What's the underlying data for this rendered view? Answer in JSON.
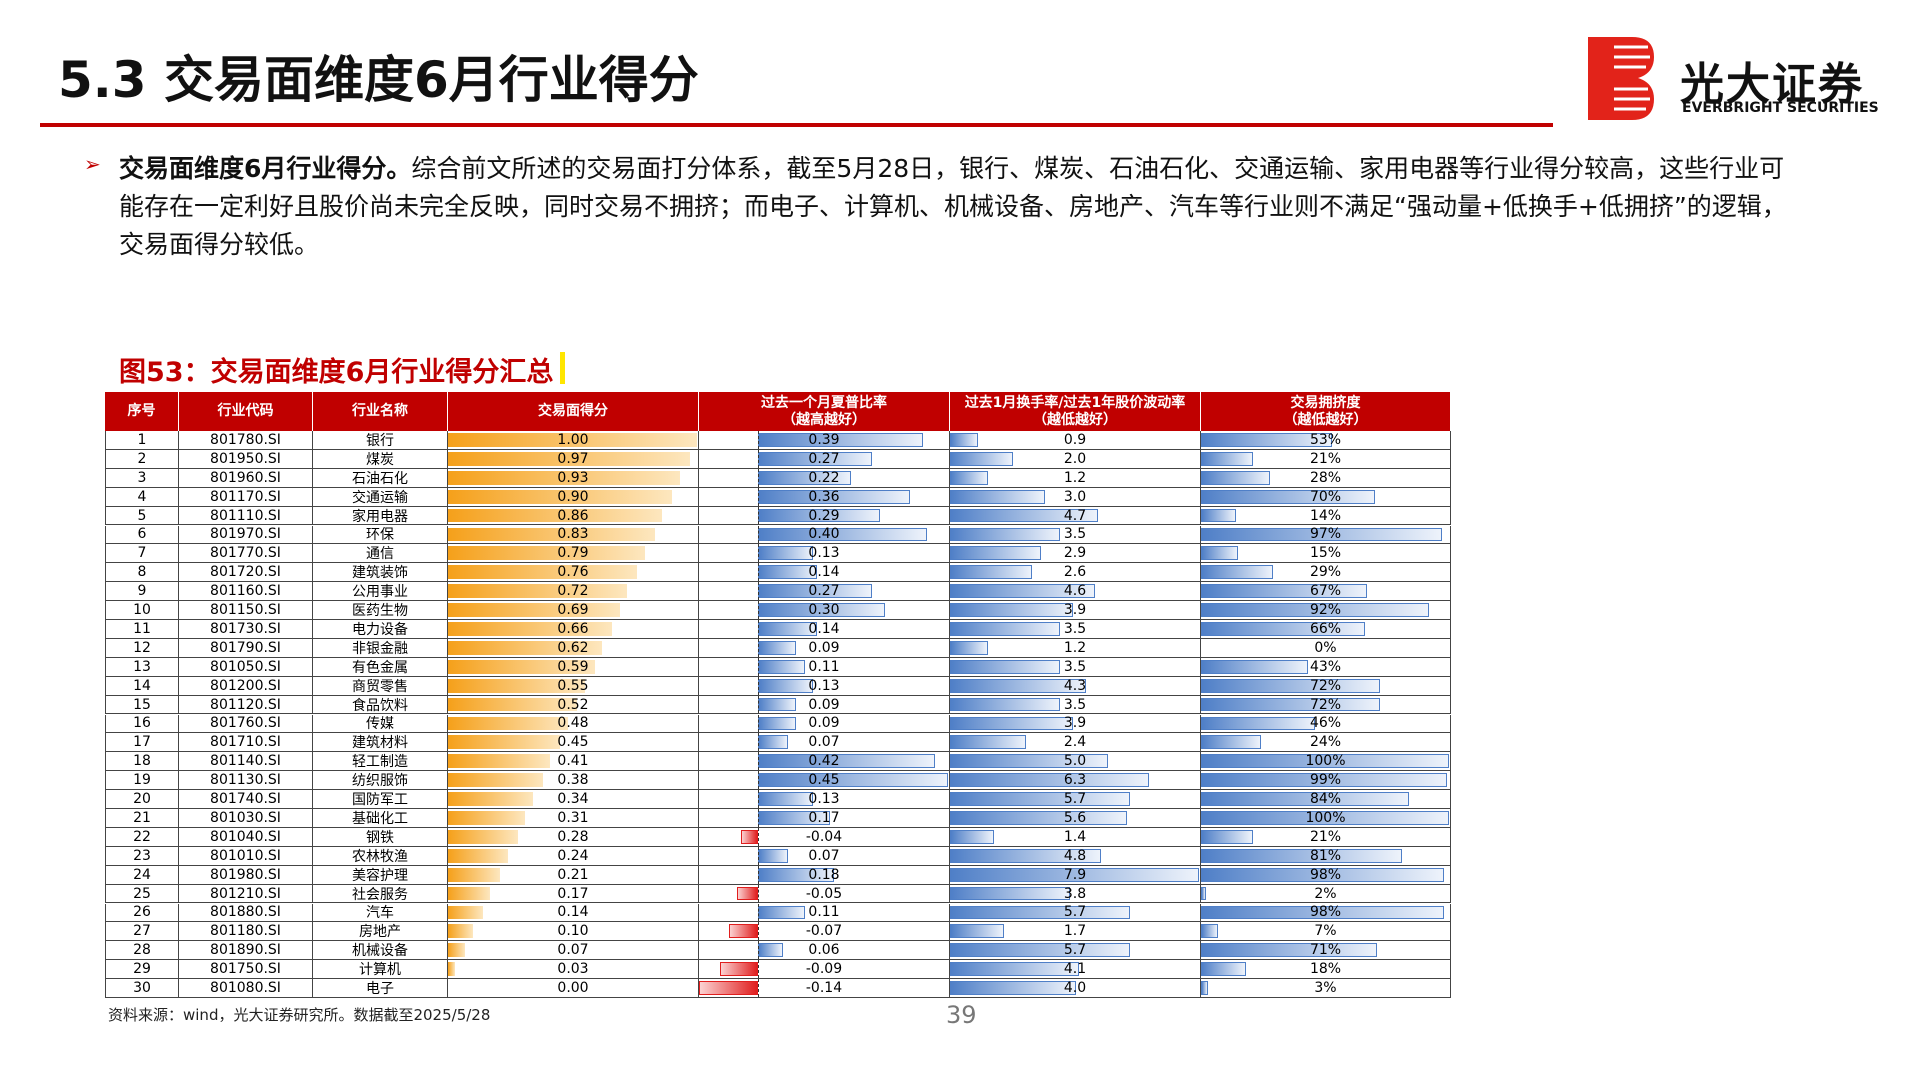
{
  "header": {
    "title": "5.3 交易面维度6月行业得分",
    "logo_cn": "光大证券",
    "logo_en": "EVERBRIGHT SECURITIES"
  },
  "paragraph": {
    "lead": "交易面维度6月行业得分。",
    "text": "综合前文所述的交易面打分体系，截至5月28日，银行、煤炭、石油石化、交通运输、家用电器等行业得分较高，这些行业可能存在一定利好且股价尚未完全反映，同时交易不拥挤；而电子、计算机、机械设备、房地产、汽车等行业则不满足“强动量+低换手+低拥挤”的逻辑，交易面得分较低。"
  },
  "figure": {
    "title": "图53：交易面维度6月行业得分汇总",
    "source": "资料来源：wind，光大证券研究所。数据截至2025/5/28"
  },
  "table": {
    "headers": [
      {
        "text": "序号"
      },
      {
        "text": "行业代码"
      },
      {
        "text": "行业名称"
      },
      {
        "text": "交易面得分"
      },
      {
        "text": "过去一个月夏普比率",
        "note": "（越高越好）"
      },
      {
        "text": "过去1月换手率/过去1年股价波动率",
        "note": "（越低越好）"
      },
      {
        "text": "交易拥挤度",
        "note": "（越低越好）"
      }
    ],
    "rows": [
      [
        "1",
        "801780.SI",
        "银行",
        "1.00",
        "0.39",
        "0.9",
        "53%"
      ],
      [
        "2",
        "801950.SI",
        "煤炭",
        "0.97",
        "0.27",
        "2.0",
        "21%"
      ],
      [
        "3",
        "801960.SI",
        "石油石化",
        "0.93",
        "0.22",
        "1.2",
        "28%"
      ],
      [
        "4",
        "801170.SI",
        "交通运输",
        "0.90",
        "0.36",
        "3.0",
        "70%"
      ],
      [
        "5",
        "801110.SI",
        "家用电器",
        "0.86",
        "0.29",
        "4.7",
        "14%"
      ],
      [
        "6",
        "801970.SI",
        "环保",
        "0.83",
        "0.40",
        "3.5",
        "97%"
      ],
      [
        "7",
        "801770.SI",
        "通信",
        "0.79",
        "0.13",
        "2.9",
        "15%"
      ],
      [
        "8",
        "801720.SI",
        "建筑装饰",
        "0.76",
        "0.14",
        "2.6",
        "29%"
      ],
      [
        "9",
        "801160.SI",
        "公用事业",
        "0.72",
        "0.27",
        "4.6",
        "67%"
      ],
      [
        "10",
        "801150.SI",
        "医药生物",
        "0.69",
        "0.30",
        "3.9",
        "92%"
      ],
      [
        "11",
        "801730.SI",
        "电力设备",
        "0.66",
        "0.14",
        "3.5",
        "66%"
      ],
      [
        "12",
        "801790.SI",
        "非银金融",
        "0.62",
        "0.09",
        "1.2",
        "0%"
      ],
      [
        "13",
        "801050.SI",
        "有色金属",
        "0.59",
        "0.11",
        "3.5",
        "43%"
      ],
      [
        "14",
        "801200.SI",
        "商贸零售",
        "0.55",
        "0.13",
        "4.3",
        "72%"
      ],
      [
        "15",
        "801120.SI",
        "食品饮料",
        "0.52",
        "0.09",
        "3.5",
        "72%"
      ],
      [
        "16",
        "801760.SI",
        "传媒",
        "0.48",
        "0.09",
        "3.9",
        "46%"
      ],
      [
        "17",
        "801710.SI",
        "建筑材料",
        "0.45",
        "0.07",
        "2.4",
        "24%"
      ],
      [
        "18",
        "801140.SI",
        "轻工制造",
        "0.41",
        "0.42",
        "5.0",
        "100%"
      ],
      [
        "19",
        "801130.SI",
        "纺织服饰",
        "0.38",
        "0.45",
        "6.3",
        "99%"
      ],
      [
        "20",
        "801740.SI",
        "国防军工",
        "0.34",
        "0.13",
        "5.7",
        "84%"
      ],
      [
        "21",
        "801030.SI",
        "基础化工",
        "0.31",
        "0.17",
        "5.6",
        "100%"
      ],
      [
        "22",
        "801040.SI",
        "钢铁",
        "0.28",
        "-0.04",
        "1.4",
        "21%"
      ],
      [
        "23",
        "801010.SI",
        "农林牧渔",
        "0.24",
        "0.07",
        "4.8",
        "81%"
      ],
      [
        "24",
        "801980.SI",
        "美容护理",
        "0.21",
        "0.18",
        "7.9",
        "98%"
      ],
      [
        "25",
        "801210.SI",
        "社会服务",
        "0.17",
        "-0.05",
        "3.8",
        "2%"
      ],
      [
        "26",
        "801880.SI",
        "汽车",
        "0.14",
        "0.11",
        "5.7",
        "98%"
      ],
      [
        "27",
        "801180.SI",
        "房地产",
        "0.10",
        "-0.07",
        "1.7",
        "7%"
      ],
      [
        "28",
        "801890.SI",
        "机械设备",
        "0.07",
        "0.06",
        "5.7",
        "71%"
      ],
      [
        "29",
        "801750.SI",
        "计算机",
        "0.03",
        "-0.09",
        "4.1",
        "18%"
      ],
      [
        "30",
        "801080.SI",
        "电子",
        "0.00",
        "-0.14",
        "4.0",
        "3%"
      ]
    ]
  },
  "page_number": "39"
}
